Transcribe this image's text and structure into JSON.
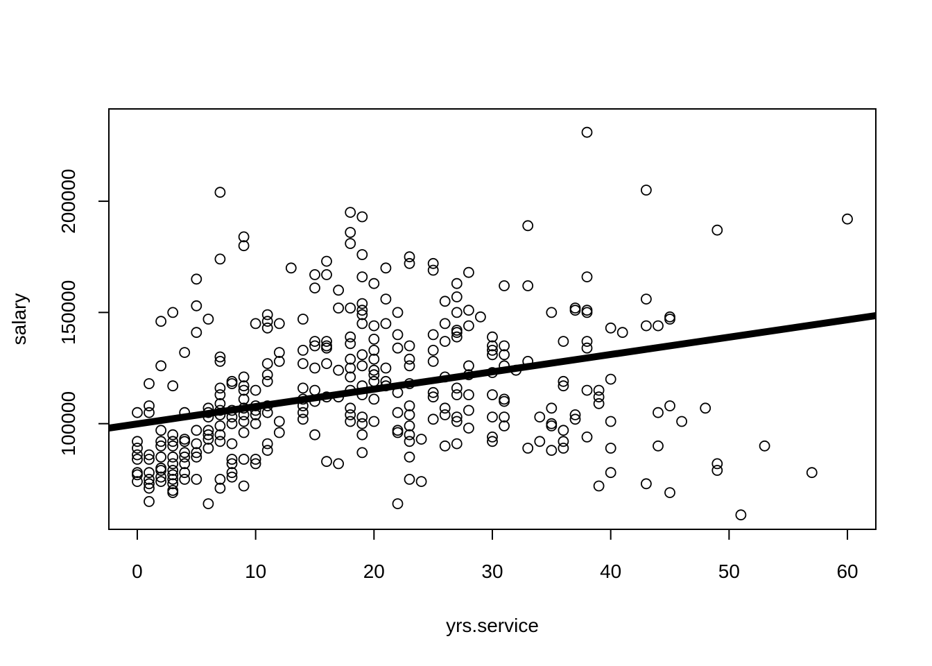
{
  "chart_data": {
    "type": "scatter",
    "title": "",
    "xlabel": "yrs.service",
    "ylabel": "salary",
    "xlim": [
      -2.4,
      62.4
    ],
    "ylim": [
      52500,
      241500
    ],
    "x_ticks": [
      0,
      10,
      20,
      30,
      40,
      50,
      60
    ],
    "x_tick_labels": [
      "0",
      "10",
      "20",
      "30",
      "40",
      "50",
      "60"
    ],
    "y_ticks": [
      100000,
      150000,
      200000
    ],
    "y_tick_labels": [
      "100000",
      "150000",
      "200000"
    ],
    "grid": false,
    "legend": "none",
    "point_style": "open-circle",
    "colors": {
      "points": "#000000",
      "line": "#000000",
      "background": "#ffffff"
    },
    "regression_line": {
      "intercept": 99900,
      "slope": 780
    },
    "points": [
      [
        0,
        105000
      ],
      [
        0,
        92000
      ],
      [
        0,
        89000
      ],
      [
        0,
        86000
      ],
      [
        0,
        84000
      ],
      [
        0,
        78000
      ],
      [
        0,
        77000
      ],
      [
        0,
        74000
      ],
      [
        1,
        118000
      ],
      [
        1,
        108000
      ],
      [
        1,
        105000
      ],
      [
        1,
        86000
      ],
      [
        1,
        84000
      ],
      [
        1,
        78000
      ],
      [
        1,
        75000
      ],
      [
        1,
        73000
      ],
      [
        1,
        71000
      ],
      [
        1,
        65000
      ],
      [
        2,
        146000
      ],
      [
        2,
        126000
      ],
      [
        2,
        97000
      ],
      [
        2,
        92000
      ],
      [
        2,
        90000
      ],
      [
        2,
        85000
      ],
      [
        2,
        80000
      ],
      [
        2,
        79000
      ],
      [
        2,
        76000
      ],
      [
        2,
        74000
      ],
      [
        3,
        150000
      ],
      [
        3,
        117000
      ],
      [
        3,
        95000
      ],
      [
        3,
        92000
      ],
      [
        3,
        90000
      ],
      [
        3,
        85000
      ],
      [
        3,
        82000
      ],
      [
        3,
        79000
      ],
      [
        3,
        77000
      ],
      [
        3,
        75000
      ],
      [
        3,
        73000
      ],
      [
        3,
        70000
      ],
      [
        3,
        69000
      ],
      [
        4,
        132000
      ],
      [
        4,
        105000
      ],
      [
        4,
        93000
      ],
      [
        4,
        92000
      ],
      [
        4,
        87000
      ],
      [
        4,
        85000
      ],
      [
        4,
        82000
      ],
      [
        4,
        78000
      ],
      [
        4,
        75000
      ],
      [
        5,
        165000
      ],
      [
        5,
        153000
      ],
      [
        5,
        141000
      ],
      [
        5,
        97000
      ],
      [
        5,
        91000
      ],
      [
        5,
        87000
      ],
      [
        5,
        85000
      ],
      [
        5,
        75000
      ],
      [
        6,
        147000
      ],
      [
        6,
        107000
      ],
      [
        6,
        105000
      ],
      [
        6,
        103000
      ],
      [
        6,
        97000
      ],
      [
        6,
        95000
      ],
      [
        6,
        93000
      ],
      [
        6,
        89000
      ],
      [
        6,
        64000
      ],
      [
        7,
        204000
      ],
      [
        7,
        174000
      ],
      [
        7,
        130000
      ],
      [
        7,
        128000
      ],
      [
        7,
        116000
      ],
      [
        7,
        113000
      ],
      [
        7,
        109000
      ],
      [
        7,
        106000
      ],
      [
        7,
        104000
      ],
      [
        7,
        99000
      ],
      [
        7,
        95000
      ],
      [
        7,
        92000
      ],
      [
        7,
        75000
      ],
      [
        7,
        71000
      ],
      [
        8,
        119000
      ],
      [
        8,
        118000
      ],
      [
        8,
        106000
      ],
      [
        8,
        103000
      ],
      [
        8,
        100000
      ],
      [
        8,
        91000
      ],
      [
        8,
        84000
      ],
      [
        8,
        82000
      ],
      [
        8,
        78000
      ],
      [
        8,
        76000
      ],
      [
        9,
        184000
      ],
      [
        9,
        180000
      ],
      [
        9,
        121000
      ],
      [
        9,
        117000
      ],
      [
        9,
        115000
      ],
      [
        9,
        111000
      ],
      [
        9,
        107000
      ],
      [
        9,
        104000
      ],
      [
        9,
        101000
      ],
      [
        9,
        96000
      ],
      [
        9,
        84000
      ],
      [
        9,
        72000
      ],
      [
        10,
        145000
      ],
      [
        10,
        115000
      ],
      [
        10,
        108000
      ],
      [
        10,
        106000
      ],
      [
        10,
        104000
      ],
      [
        10,
        100000
      ],
      [
        10,
        84000
      ],
      [
        10,
        82000
      ],
      [
        11,
        149000
      ],
      [
        11,
        146000
      ],
      [
        11,
        143000
      ],
      [
        11,
        127000
      ],
      [
        11,
        122000
      ],
      [
        11,
        119000
      ],
      [
        11,
        108000
      ],
      [
        11,
        105000
      ],
      [
        11,
        91000
      ],
      [
        11,
        88000
      ],
      [
        12,
        145000
      ],
      [
        12,
        132000
      ],
      [
        12,
        128000
      ],
      [
        12,
        101000
      ],
      [
        12,
        96000
      ],
      [
        13,
        170000
      ],
      [
        14,
        147000
      ],
      [
        14,
        133000
      ],
      [
        14,
        127000
      ],
      [
        14,
        116000
      ],
      [
        14,
        111000
      ],
      [
        14,
        108000
      ],
      [
        14,
        105000
      ],
      [
        14,
        102000
      ],
      [
        15,
        167000
      ],
      [
        15,
        161000
      ],
      [
        15,
        137000
      ],
      [
        15,
        135000
      ],
      [
        15,
        125000
      ],
      [
        15,
        115000
      ],
      [
        15,
        110000
      ],
      [
        15,
        95000
      ],
      [
        16,
        173000
      ],
      [
        16,
        167000
      ],
      [
        16,
        137000
      ],
      [
        16,
        135000
      ],
      [
        16,
        134000
      ],
      [
        16,
        127000
      ],
      [
        16,
        112000
      ],
      [
        16,
        83000
      ],
      [
        17,
        160000
      ],
      [
        17,
        152000
      ],
      [
        17,
        124000
      ],
      [
        17,
        112000
      ],
      [
        17,
        82000
      ],
      [
        18,
        195000
      ],
      [
        18,
        186000
      ],
      [
        18,
        181000
      ],
      [
        18,
        152000
      ],
      [
        18,
        139000
      ],
      [
        18,
        136000
      ],
      [
        18,
        129000
      ],
      [
        18,
        125000
      ],
      [
        18,
        121000
      ],
      [
        18,
        115000
      ],
      [
        18,
        107000
      ],
      [
        18,
        104000
      ],
      [
        18,
        101000
      ],
      [
        19,
        193000
      ],
      [
        19,
        176000
      ],
      [
        19,
        166000
      ],
      [
        19,
        154000
      ],
      [
        19,
        151000
      ],
      [
        19,
        149000
      ],
      [
        19,
        145000
      ],
      [
        19,
        131000
      ],
      [
        19,
        126000
      ],
      [
        19,
        117000
      ],
      [
        19,
        113000
      ],
      [
        19,
        103000
      ],
      [
        19,
        100000
      ],
      [
        19,
        95000
      ],
      [
        19,
        87000
      ],
      [
        20,
        163000
      ],
      [
        20,
        144000
      ],
      [
        20,
        138000
      ],
      [
        20,
        133000
      ],
      [
        20,
        129000
      ],
      [
        20,
        124000
      ],
      [
        20,
        122000
      ],
      [
        20,
        119000
      ],
      [
        20,
        111000
      ],
      [
        20,
        101000
      ],
      [
        21,
        170000
      ],
      [
        21,
        156000
      ],
      [
        21,
        145000
      ],
      [
        21,
        125000
      ],
      [
        21,
        119000
      ],
      [
        21,
        117000
      ],
      [
        22,
        150000
      ],
      [
        22,
        140000
      ],
      [
        22,
        134000
      ],
      [
        22,
        114000
      ],
      [
        22,
        105000
      ],
      [
        22,
        97000
      ],
      [
        22,
        96000
      ],
      [
        22,
        64000
      ],
      [
        23,
        175000
      ],
      [
        23,
        172000
      ],
      [
        23,
        135000
      ],
      [
        23,
        129000
      ],
      [
        23,
        126000
      ],
      [
        23,
        118000
      ],
      [
        23,
        108000
      ],
      [
        23,
        104000
      ],
      [
        23,
        99000
      ],
      [
        23,
        95000
      ],
      [
        23,
        92000
      ],
      [
        23,
        85000
      ],
      [
        23,
        75000
      ],
      [
        24,
        93000
      ],
      [
        24,
        74000
      ],
      [
        25,
        172000
      ],
      [
        25,
        169000
      ],
      [
        25,
        140000
      ],
      [
        25,
        133000
      ],
      [
        25,
        128000
      ],
      [
        25,
        114000
      ],
      [
        25,
        112000
      ],
      [
        25,
        102000
      ],
      [
        26,
        155000
      ],
      [
        26,
        145000
      ],
      [
        26,
        137000
      ],
      [
        26,
        121000
      ],
      [
        26,
        107000
      ],
      [
        26,
        104000
      ],
      [
        26,
        90000
      ],
      [
        27,
        163000
      ],
      [
        27,
        157000
      ],
      [
        27,
        150000
      ],
      [
        27,
        142000
      ],
      [
        27,
        141000
      ],
      [
        27,
        139000
      ],
      [
        27,
        116000
      ],
      [
        27,
        113000
      ],
      [
        27,
        103000
      ],
      [
        27,
        101000
      ],
      [
        27,
        91000
      ],
      [
        28,
        168000
      ],
      [
        28,
        151000
      ],
      [
        28,
        144000
      ],
      [
        28,
        126000
      ],
      [
        28,
        122000
      ],
      [
        28,
        113000
      ],
      [
        28,
        106000
      ],
      [
        28,
        98000
      ],
      [
        29,
        148000
      ],
      [
        30,
        139000
      ],
      [
        30,
        135000
      ],
      [
        30,
        133000
      ],
      [
        30,
        131000
      ],
      [
        30,
        123000
      ],
      [
        30,
        113000
      ],
      [
        30,
        103000
      ],
      [
        30,
        94000
      ],
      [
        30,
        92000
      ],
      [
        31,
        162000
      ],
      [
        31,
        135000
      ],
      [
        31,
        131000
      ],
      [
        31,
        126000
      ],
      [
        31,
        111000
      ],
      [
        31,
        110000
      ],
      [
        31,
        103000
      ],
      [
        31,
        99000
      ],
      [
        32,
        124000
      ],
      [
        33,
        189000
      ],
      [
        33,
        162000
      ],
      [
        33,
        128000
      ],
      [
        33,
        89000
      ],
      [
        34,
        103000
      ],
      [
        34,
        92000
      ],
      [
        35,
        150000
      ],
      [
        35,
        107000
      ],
      [
        35,
        100000
      ],
      [
        35,
        99000
      ],
      [
        35,
        88000
      ],
      [
        36,
        137000
      ],
      [
        36,
        119000
      ],
      [
        36,
        117000
      ],
      [
        36,
        97000
      ],
      [
        36,
        92000
      ],
      [
        36,
        89000
      ],
      [
        37,
        152000
      ],
      [
        37,
        151000
      ],
      [
        37,
        104000
      ],
      [
        37,
        102000
      ],
      [
        38,
        231000
      ],
      [
        38,
        166000
      ],
      [
        38,
        151000
      ],
      [
        38,
        150000
      ],
      [
        38,
        137000
      ],
      [
        38,
        134000
      ],
      [
        38,
        115000
      ],
      [
        38,
        94000
      ],
      [
        39,
        115000
      ],
      [
        39,
        112000
      ],
      [
        39,
        109000
      ],
      [
        39,
        72000
      ],
      [
        40,
        143000
      ],
      [
        40,
        120000
      ],
      [
        40,
        101000
      ],
      [
        40,
        89000
      ],
      [
        40,
        78000
      ],
      [
        41,
        141000
      ],
      [
        43,
        205000
      ],
      [
        43,
        156000
      ],
      [
        43,
        144000
      ],
      [
        43,
        73000
      ],
      [
        44,
        144000
      ],
      [
        44,
        105000
      ],
      [
        44,
        90000
      ],
      [
        45,
        148000
      ],
      [
        45,
        147000
      ],
      [
        45,
        108000
      ],
      [
        45,
        69000
      ],
      [
        46,
        101000
      ],
      [
        48,
        107000
      ],
      [
        49,
        187000
      ],
      [
        49,
        82000
      ],
      [
        49,
        79000
      ],
      [
        51,
        59000
      ],
      [
        53,
        90000
      ],
      [
        57,
        78000
      ],
      [
        60,
        192000
      ]
    ]
  }
}
